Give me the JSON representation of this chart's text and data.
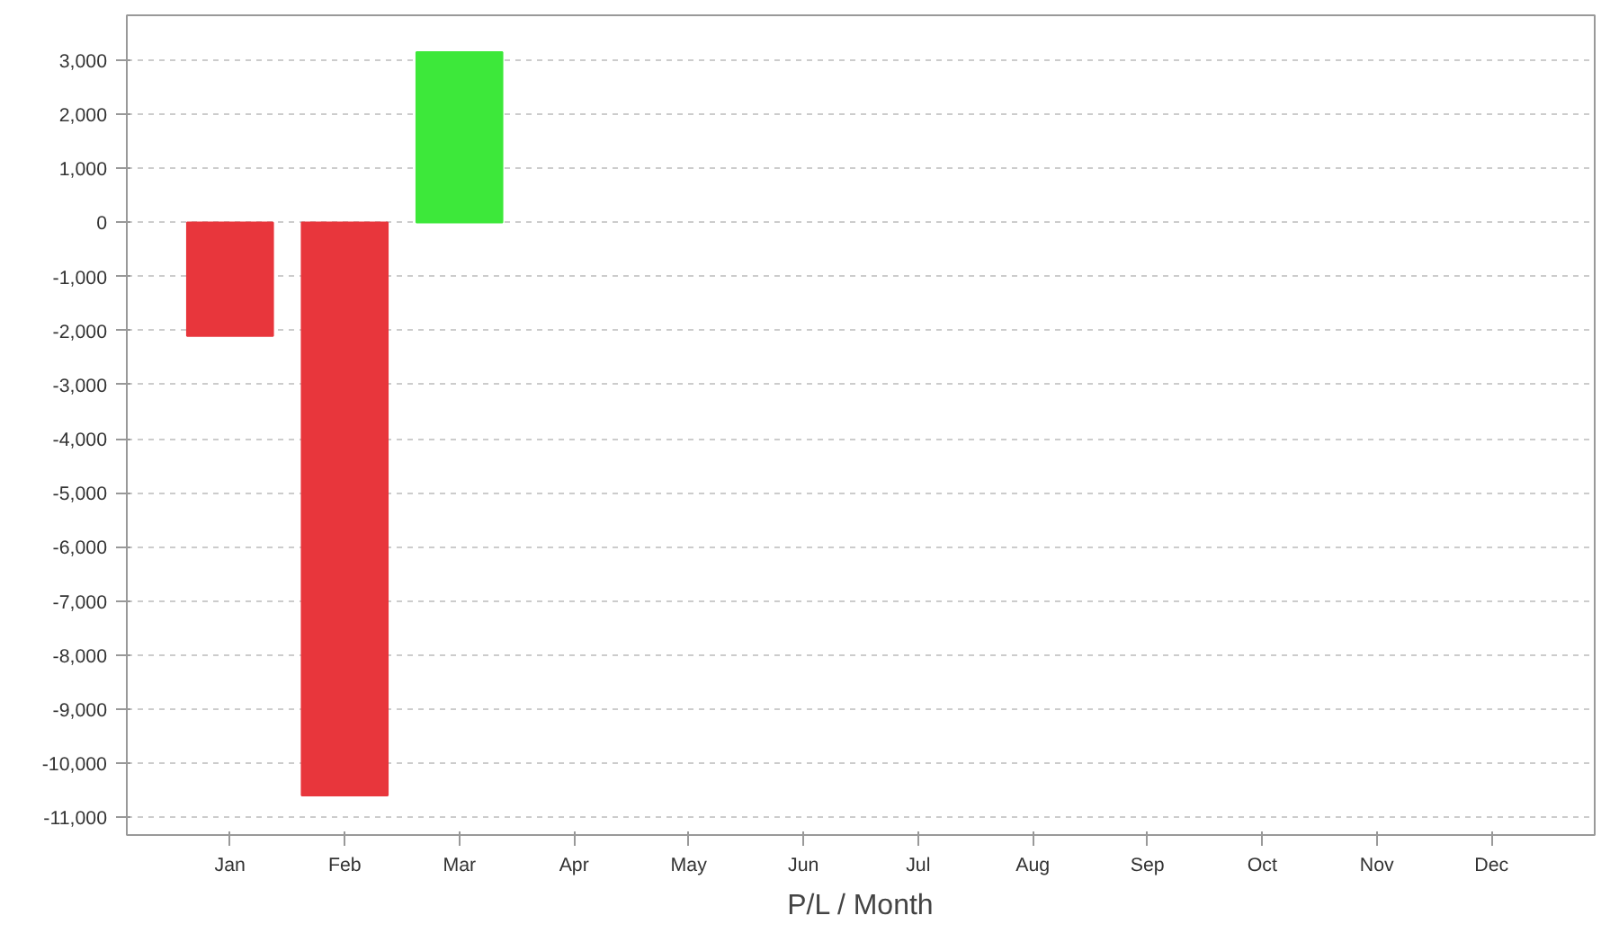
{
  "chart_data": {
    "type": "bar",
    "xlabel": "P/L / Month",
    "categories": [
      "Jan",
      "Feb",
      "Mar",
      "Apr",
      "May",
      "Jun",
      "Jul",
      "Aug",
      "Sep",
      "Oct",
      "Nov",
      "Dec"
    ],
    "values": [
      -2100,
      -10600,
      3150,
      null,
      null,
      null,
      null,
      null,
      null,
      null,
      null,
      null
    ],
    "colors": [
      "#e8363c",
      "#e8363c",
      "#3de83a",
      null,
      null,
      null,
      null,
      null,
      null,
      null,
      null,
      null
    ],
    "ylim": [
      -11330,
      3830
    ],
    "yticks": [
      {
        "value": -11000,
        "label": "-11,000"
      },
      {
        "value": -10000,
        "label": "-10,000"
      },
      {
        "value": -9000,
        "label": "-9,000"
      },
      {
        "value": -8000,
        "label": "-8,000"
      },
      {
        "value": -7000,
        "label": "-7,000"
      },
      {
        "value": -6000,
        "label": "-6,000"
      },
      {
        "value": -5000,
        "label": "-5,000"
      },
      {
        "value": -4000,
        "label": "-4,000"
      },
      {
        "value": -3000,
        "label": "-3,000"
      },
      {
        "value": -2000,
        "label": "-2,000"
      },
      {
        "value": -1000,
        "label": "-1,000"
      },
      0,
      {
        "value": 1000,
        "label": "1,000"
      },
      {
        "value": 2000,
        "label": "2,000"
      },
      {
        "value": 3000,
        "label": "3,000"
      }
    ],
    "grid": "y"
  }
}
